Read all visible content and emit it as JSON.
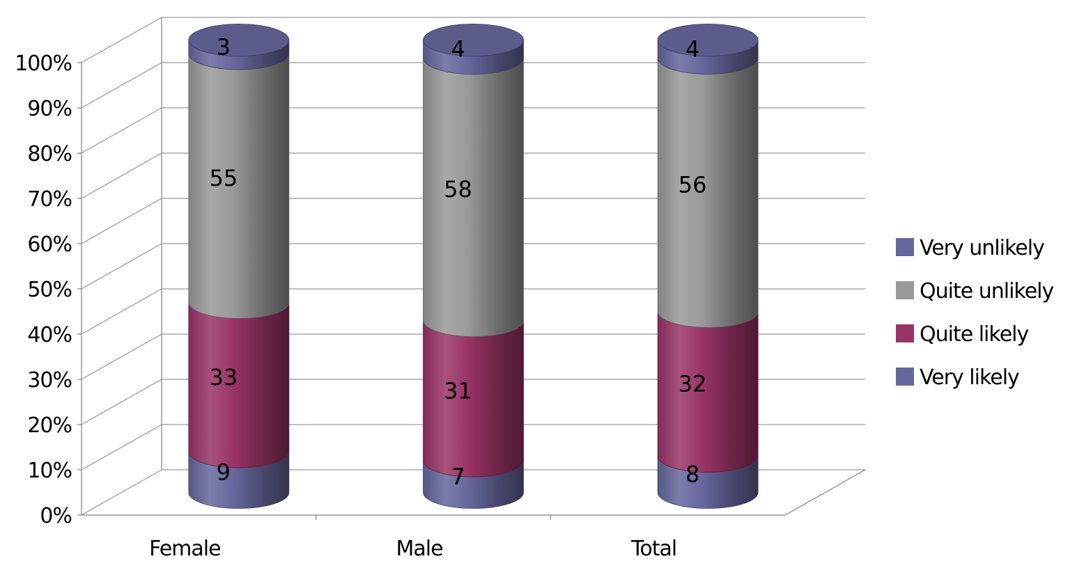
{
  "chart_data": {
    "type": "bar",
    "subtype": "stacked-percent-3d-cylinder",
    "title": "",
    "xlabel": "",
    "ylabel": "",
    "categories": [
      "Female",
      "Male",
      "Total"
    ],
    "ylim": [
      0,
      100
    ],
    "y_ticks": [
      "0%",
      "10%",
      "20%",
      "30%",
      "40%",
      "50%",
      "60%",
      "70%",
      "80%",
      "90%",
      "100%"
    ],
    "series": [
      {
        "name": "Very likely",
        "values": [
          9,
          7,
          8
        ],
        "color": "#66669c"
      },
      {
        "name": "Quite likely",
        "values": [
          33,
          31,
          32
        ],
        "color": "#993366"
      },
      {
        "name": "Quite unlikely",
        "values": [
          55,
          58,
          56
        ],
        "color": "#999999"
      },
      {
        "name": "Very unlikely",
        "values": [
          3,
          4,
          4
        ],
        "color": "#66669c"
      }
    ],
    "legend_order": [
      "Very unlikely",
      "Quite unlikely",
      "Quite likely",
      "Very likely"
    ],
    "legend_position": "right",
    "grid": true
  }
}
